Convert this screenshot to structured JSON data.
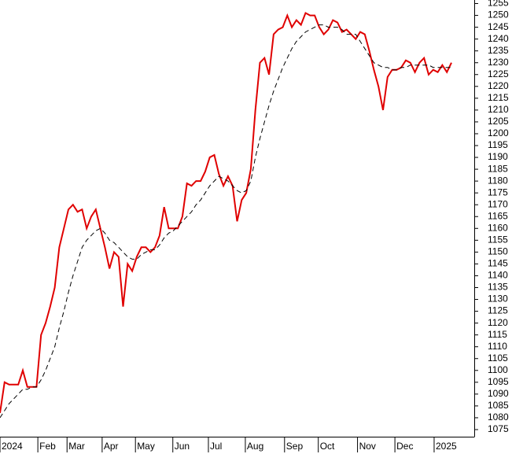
{
  "chart_data": {
    "type": "line",
    "xlim": [
      0,
      104
    ],
    "xticks": [
      {
        "value": 0,
        "label": "2024"
      },
      {
        "value": 8.3,
        "label": "Feb"
      },
      {
        "value": 14.7,
        "label": "Mar"
      },
      {
        "value": 22.4,
        "label": "Apr"
      },
      {
        "value": 29.7,
        "label": "May"
      },
      {
        "value": 37.9,
        "label": "Jun"
      },
      {
        "value": 45.7,
        "label": "Jul"
      },
      {
        "value": 53.8,
        "label": "Aug"
      },
      {
        "value": 62.4,
        "label": "Sep"
      },
      {
        "value": 69.8,
        "label": "Oct"
      },
      {
        "value": 78.4,
        "label": "Nov"
      },
      {
        "value": 86.6,
        "label": "Dec"
      },
      {
        "value": 95.2,
        "label": "2025"
      }
    ],
    "ylim": [
      1072,
      1256.5
    ],
    "yticks": [
      1075,
      1080,
      1085,
      1090,
      1095,
      1100,
      1105,
      1110,
      1115,
      1120,
      1125,
      1130,
      1135,
      1140,
      1145,
      1150,
      1155,
      1160,
      1165,
      1170,
      1175,
      1180,
      1185,
      1190,
      1195,
      1200,
      1205,
      1210,
      1215,
      1220,
      1225,
      1230,
      1235,
      1240,
      1245,
      1250,
      1255
    ],
    "series": [
      {
        "color": "#e00000",
        "dashed": false,
        "values": [
          1082,
          1095,
          1094,
          1094,
          1094,
          1100,
          1093,
          1093,
          1093,
          1115,
          1120,
          1127,
          1135,
          1152,
          1160,
          1168,
          1170,
          1167,
          1168,
          1160,
          1165,
          1168,
          1160,
          1152,
          1143,
          1150,
          1148,
          1127,
          1145,
          1142,
          1148,
          1152,
          1152,
          1150,
          1152,
          1157,
          1169,
          1160,
          1160,
          1160,
          1165,
          1179,
          1178,
          1180,
          1180,
          1184,
          1190,
          1191,
          1183,
          1178,
          1182,
          1178,
          1163,
          1172,
          1175,
          1185,
          1210,
          1230,
          1232,
          1225,
          1242,
          1244,
          1245,
          1250,
          1245,
          1248,
          1246,
          1251,
          1250,
          1250,
          1245,
          1242,
          1244,
          1248,
          1247,
          1243,
          1244,
          1242,
          1240,
          1243,
          1242,
          1235,
          1227,
          1220,
          1210,
          1224,
          1227,
          1227,
          1228,
          1231,
          1230,
          1226,
          1230,
          1232,
          1225,
          1227,
          1226,
          1229,
          1226,
          1230
        ]
      },
      {
        "color": "#000000",
        "dashed": true,
        "values": [
          1080,
          1083,
          1086,
          1088,
          1090,
          1092,
          1092,
          1093,
          1093,
          1096,
          1100,
          1105,
          1110,
          1118,
          1125,
          1133,
          1140,
          1146,
          1152,
          1155,
          1157,
          1159,
          1160,
          1158,
          1155,
          1154,
          1152,
          1150,
          1148,
          1147,
          1147,
          1149,
          1150,
          1151,
          1151,
          1153,
          1156,
          1158,
          1159,
          1161,
          1163,
          1165,
          1167,
          1170,
          1172,
          1175,
          1178,
          1180,
          1182,
          1181,
          1180,
          1178,
          1176,
          1175,
          1176,
          1180,
          1190,
          1198,
          1205,
          1212,
          1218,
          1223,
          1228,
          1232,
          1236,
          1239,
          1241,
          1243,
          1244,
          1245,
          1246,
          1246,
          1245,
          1245,
          1245,
          1244,
          1242,
          1242,
          1242,
          1239,
          1236,
          1233,
          1230,
          1229,
          1228,
          1228,
          1227,
          1227,
          1228,
          1228,
          1229,
          1229,
          1229,
          1229,
          1229,
          1228,
          1228,
          1228,
          1228,
          1228
        ]
      }
    ]
  }
}
